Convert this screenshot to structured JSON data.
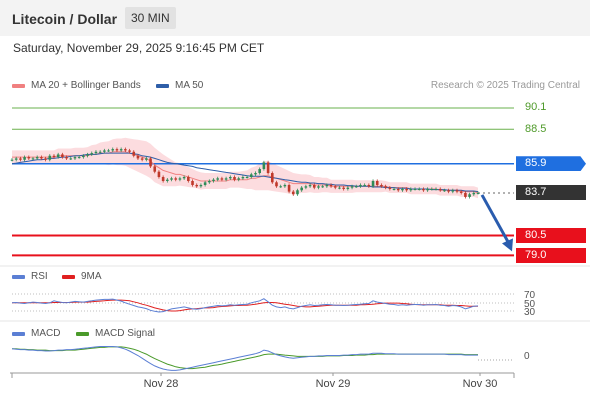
{
  "header": {
    "title": "Litecoin / Dollar",
    "timeframe": "30 MIN"
  },
  "datetime": "Saturday, November 29, 2025 9:16:45 PM CET",
  "legend": {
    "main": [
      {
        "label": "MA 20 + Bollinger Bands",
        "color": "#f08080"
      },
      {
        "label": "MA 50",
        "color": "#2e5ea8"
      }
    ],
    "rsi": [
      {
        "label": "RSI",
        "color": "#5b7fd4"
      },
      {
        "label": "9MA",
        "color": "#e02020"
      }
    ],
    "macd": [
      {
        "label": "MACD",
        "color": "#5b7fd4"
      },
      {
        "label": "MACD Signal",
        "color": "#4a9a2a"
      }
    ]
  },
  "copyright": "Research © 2025 Trading Central",
  "chart_data": {
    "type": "candlestick",
    "y_range": [
      78.5,
      91.0
    ],
    "levels": [
      {
        "label": "90.1",
        "value": 90.1,
        "style": "resistance-line",
        "color": "#6ab04c"
      },
      {
        "label": "88.5",
        "value": 88.5,
        "style": "resistance-line",
        "color": "#6ab04c"
      },
      {
        "label": "85.9",
        "value": 85.9,
        "style": "pivot",
        "color": "#1f6fe0"
      },
      {
        "label": "83.7",
        "value": 83.7,
        "style": "last-price",
        "color": "#333333"
      },
      {
        "label": "80.5",
        "value": 80.5,
        "style": "support",
        "color": "#e8101c"
      },
      {
        "label": "79.0",
        "value": 79.0,
        "style": "support",
        "color": "#e8101c"
      }
    ],
    "x_ticks": [
      "Nov 28",
      "Nov 29",
      "Nov 30"
    ],
    "close": [
      86.2,
      86.3,
      86.2,
      86.4,
      86.3,
      86.3,
      86.4,
      86.3,
      86.2,
      86.5,
      86.4,
      86.6,
      86.4,
      86.3,
      86.3,
      86.4,
      86.4,
      86.5,
      86.6,
      86.7,
      86.8,
      86.8,
      86.9,
      86.9,
      87.0,
      86.9,
      87.0,
      86.9,
      86.8,
      86.5,
      86.3,
      86.2,
      86.3,
      85.7,
      85.3,
      84.9,
      84.6,
      84.7,
      84.8,
      84.7,
      84.8,
      84.9,
      84.6,
      84.3,
      84.2,
      84.3,
      84.5,
      84.6,
      84.7,
      84.8,
      84.7,
      84.8,
      84.9,
      84.7,
      84.8,
      84.9,
      84.9,
      85.1,
      85.2,
      85.5,
      86.0,
      85.2,
      84.5,
      84.2,
      84.2,
      84.3,
      83.8,
      83.6,
      83.9,
      84.1,
      84.2,
      84.3,
      84.1,
      84.2,
      84.2,
      84.3,
      84.2,
      84.1,
      84.1,
      84.0,
      84.1,
      84.2,
      84.2,
      84.3,
      84.3,
      84.2,
      84.6,
      84.3,
      84.2,
      84.1,
      84.0,
      84.0,
      83.9,
      84.0,
      83.9,
      84.0,
      84.0,
      84.0,
      83.9,
      84.0,
      84.0,
      84.0,
      83.9,
      83.9,
      83.8,
      83.9,
      83.8,
      83.7,
      83.4,
      83.6,
      83.7,
      83.7
    ],
    "ma20": [
      86.4,
      86.4,
      86.4,
      86.4,
      86.4,
      86.4,
      86.4,
      86.4,
      86.4,
      86.4,
      86.4,
      86.5,
      86.5,
      86.5,
      86.5,
      86.5,
      86.5,
      86.5,
      86.5,
      86.6,
      86.6,
      86.7,
      86.7,
      86.7,
      86.8,
      86.8,
      86.8,
      86.8,
      86.7,
      86.6,
      86.5,
      86.4,
      86.3,
      86.1,
      85.8,
      85.6,
      85.4,
      85.3,
      85.2,
      85.1,
      85.1,
      85.0,
      84.9,
      84.8,
      84.7,
      84.6,
      84.6,
      84.6,
      84.6,
      84.6,
      84.6,
      84.6,
      84.7,
      84.7,
      84.7,
      84.7,
      84.7,
      84.8,
      84.8,
      84.9,
      85.0,
      85.0,
      84.9,
      84.8,
      84.7,
      84.6,
      84.5,
      84.4,
      84.4,
      84.4,
      84.4,
      84.4,
      84.3,
      84.3,
      84.3,
      84.3,
      84.2,
      84.2,
      84.2,
      84.2,
      84.2,
      84.2,
      84.2,
      84.2,
      84.2,
      84.2,
      84.2,
      84.2,
      84.2,
      84.2,
      84.1,
      84.1,
      84.1,
      84.1,
      84.1,
      84.0,
      84.0,
      84.0,
      84.0,
      84.0,
      84.0,
      84.0,
      83.9,
      83.9,
      83.9,
      83.9,
      83.9,
      83.8,
      83.8,
      83.8,
      83.8,
      83.7
    ],
    "ma50": [
      85.9,
      85.95,
      86.0,
      86.05,
      86.1,
      86.15,
      86.2,
      86.2,
      86.25,
      86.3,
      86.3,
      86.35,
      86.4,
      86.4,
      86.45,
      86.5,
      86.5,
      86.55,
      86.6,
      86.6,
      86.6,
      86.65,
      86.7,
      86.7,
      86.7,
      86.7,
      86.7,
      86.7,
      86.7,
      86.65,
      86.6,
      86.5,
      86.45,
      86.4,
      86.3,
      86.2,
      86.1,
      86.0,
      85.95,
      85.9,
      85.85,
      85.8,
      85.75,
      85.7,
      85.6,
      85.55,
      85.5,
      85.45,
      85.4,
      85.35,
      85.3,
      85.25,
      85.2,
      85.15,
      85.1,
      85.05,
      85.0,
      84.95,
      84.95,
      84.95,
      84.95,
      84.9,
      84.85,
      84.8,
      84.75,
      84.7,
      84.65,
      84.6,
      84.55,
      84.5,
      84.5,
      84.45,
      84.45,
      84.4,
      84.4,
      84.35,
      84.35,
      84.3,
      84.3,
      84.3,
      84.25,
      84.25,
      84.2,
      84.2,
      84.2,
      84.2,
      84.15,
      84.15,
      84.15,
      84.1,
      84.1,
      84.1,
      84.05,
      84.05,
      84.05,
      84.0,
      84.0,
      84.0,
      84.0,
      84.0,
      83.95,
      83.95,
      83.95,
      83.95,
      83.9,
      83.9,
      83.9,
      83.9,
      83.85,
      83.85,
      83.85,
      83.8
    ],
    "bb_width": [
      0.5,
      0.5,
      0.5,
      0.5,
      0.5,
      0.5,
      0.5,
      0.5,
      0.5,
      0.5,
      0.5,
      0.55,
      0.55,
      0.55,
      0.55,
      0.6,
      0.6,
      0.6,
      0.65,
      0.7,
      0.75,
      0.8,
      0.85,
      0.9,
      0.95,
      1.0,
      1.0,
      1.05,
      1.1,
      1.15,
      1.2,
      1.25,
      1.3,
      1.3,
      1.3,
      1.25,
      1.2,
      1.1,
      1.0,
      0.9,
      0.85,
      0.8,
      0.75,
      0.7,
      0.65,
      0.65,
      0.6,
      0.6,
      0.6,
      0.6,
      0.6,
      0.6,
      0.6,
      0.6,
      0.6,
      0.65,
      0.7,
      0.8,
      0.9,
      1.0,
      1.1,
      1.1,
      1.05,
      1.0,
      0.95,
      0.9,
      0.85,
      0.8,
      0.75,
      0.7,
      0.7,
      0.65,
      0.6,
      0.6,
      0.55,
      0.55,
      0.5,
      0.5,
      0.5,
      0.5,
      0.5,
      0.5,
      0.45,
      0.45,
      0.45,
      0.45,
      0.45,
      0.45,
      0.45,
      0.4,
      0.4,
      0.4,
      0.4,
      0.4,
      0.4,
      0.4,
      0.4,
      0.4,
      0.4,
      0.4,
      0.4,
      0.4,
      0.4,
      0.4,
      0.4,
      0.4,
      0.4,
      0.4,
      0.4,
      0.4,
      0.4,
      0.4
    ],
    "rsi": {
      "y_range": [
        20,
        80
      ],
      "levels": [
        {
          "label": "70",
          "value": 70
        },
        {
          "label": "50",
          "value": 50
        },
        {
          "label": "30",
          "value": 30
        }
      ],
      "rsi": [
        52,
        53,
        51,
        50,
        52,
        54,
        53,
        51,
        50,
        52,
        58,
        55,
        53,
        52,
        54,
        56,
        55,
        54,
        56,
        58,
        60,
        61,
        62,
        62,
        63,
        60,
        57,
        52,
        48,
        44,
        40,
        38,
        35,
        30,
        27,
        25,
        26,
        30,
        34,
        36,
        38,
        40,
        37,
        34,
        33,
        35,
        38,
        40,
        42,
        44,
        43,
        44,
        46,
        45,
        46,
        47,
        48,
        52,
        55,
        58,
        64,
        55,
        45,
        40,
        38,
        40,
        36,
        34,
        38,
        42,
        44,
        46,
        44,
        45,
        46,
        47,
        46,
        45,
        45,
        44,
        45,
        46,
        47,
        48,
        49,
        50,
        58,
        54,
        52,
        50,
        48,
        47,
        45,
        46,
        45,
        46,
        47,
        47,
        45,
        46,
        46,
        47,
        45,
        44,
        42,
        44,
        43,
        40,
        34,
        38,
        42,
        43
      ],
      "ma9": [
        52,
        52,
        52,
        52,
        52,
        52,
        52,
        52,
        52,
        52,
        53,
        53,
        53,
        53,
        53,
        54,
        54,
        54,
        54,
        55,
        56,
        57,
        58,
        59,
        60,
        60,
        60,
        59,
        58,
        55,
        52,
        48,
        45,
        41,
        37,
        34,
        31,
        29,
        28,
        28,
        29,
        31,
        33,
        34,
        35,
        36,
        37,
        37,
        38,
        40,
        41,
        42,
        43,
        44,
        44,
        45,
        45,
        46,
        48,
        50,
        52,
        53,
        53,
        52,
        50,
        48,
        46,
        44,
        42,
        41,
        40,
        40,
        41,
        42,
        43,
        44,
        45,
        45,
        45,
        45,
        45,
        45,
        45,
        46,
        46,
        47,
        48,
        49,
        50,
        51,
        51,
        51,
        51,
        50,
        49,
        48,
        47,
        46,
        46,
        46,
        46,
        46,
        46,
        45,
        45,
        45,
        44,
        44,
        43,
        42,
        42,
        42
      ]
    },
    "macd": {
      "y_range": [
        -0.55,
        0.15
      ],
      "zero_label": "0",
      "macd": [
        0.05,
        0.04,
        0.03,
        0.03,
        0.02,
        0.02,
        0.01,
        0.01,
        0.0,
        0.0,
        0.01,
        0.02,
        0.02,
        0.03,
        0.03,
        0.04,
        0.05,
        0.06,
        0.07,
        0.08,
        0.09,
        0.1,
        0.1,
        0.1,
        0.1,
        0.09,
        0.07,
        0.04,
        0.0,
        -0.05,
        -0.1,
        -0.16,
        -0.22,
        -0.28,
        -0.33,
        -0.37,
        -0.4,
        -0.42,
        -0.43,
        -0.43,
        -0.42,
        -0.4,
        -0.38,
        -0.36,
        -0.34,
        -0.32,
        -0.3,
        -0.28,
        -0.26,
        -0.24,
        -0.22,
        -0.2,
        -0.18,
        -0.16,
        -0.14,
        -0.12,
        -0.1,
        -0.08,
        -0.06,
        -0.03,
        0.02,
        0.0,
        -0.04,
        -0.08,
        -0.11,
        -0.13,
        -0.15,
        -0.16,
        -0.15,
        -0.14,
        -0.13,
        -0.12,
        -0.12,
        -0.11,
        -0.11,
        -0.1,
        -0.1,
        -0.1,
        -0.1,
        -0.09,
        -0.09,
        -0.08,
        -0.08,
        -0.07,
        -0.07,
        -0.07,
        -0.05,
        -0.05,
        -0.05,
        -0.06,
        -0.06,
        -0.06,
        -0.07,
        -0.07,
        -0.07,
        -0.07,
        -0.07,
        -0.07,
        -0.07,
        -0.07,
        -0.07,
        -0.07,
        -0.07,
        -0.07,
        -0.08,
        -0.08,
        -0.08,
        -0.08,
        -0.09,
        -0.09,
        -0.09,
        -0.09
      ],
      "signal": [
        0.05,
        0.05,
        0.04,
        0.04,
        0.03,
        0.03,
        0.02,
        0.02,
        0.02,
        0.01,
        0.01,
        0.01,
        0.01,
        0.02,
        0.02,
        0.02,
        0.03,
        0.04,
        0.05,
        0.06,
        0.07,
        0.08,
        0.08,
        0.09,
        0.09,
        0.09,
        0.09,
        0.08,
        0.06,
        0.04,
        0.01,
        -0.03,
        -0.07,
        -0.12,
        -0.17,
        -0.21,
        -0.25,
        -0.29,
        -0.32,
        -0.35,
        -0.37,
        -0.38,
        -0.39,
        -0.39,
        -0.38,
        -0.37,
        -0.36,
        -0.34,
        -0.32,
        -0.31,
        -0.29,
        -0.27,
        -0.25,
        -0.23,
        -0.21,
        -0.19,
        -0.17,
        -0.15,
        -0.13,
        -0.11,
        -0.08,
        -0.07,
        -0.07,
        -0.07,
        -0.08,
        -0.09,
        -0.1,
        -0.11,
        -0.12,
        -0.12,
        -0.12,
        -0.12,
        -0.12,
        -0.12,
        -0.12,
        -0.11,
        -0.11,
        -0.11,
        -0.11,
        -0.1,
        -0.1,
        -0.1,
        -0.09,
        -0.09,
        -0.09,
        -0.08,
        -0.08,
        -0.07,
        -0.07,
        -0.07,
        -0.07,
        -0.07,
        -0.07,
        -0.07,
        -0.07,
        -0.07,
        -0.07,
        -0.07,
        -0.07,
        -0.07,
        -0.07,
        -0.07,
        -0.07,
        -0.07,
        -0.07,
        -0.07,
        -0.07,
        -0.07,
        -0.08,
        -0.08,
        -0.08,
        -0.08
      ]
    }
  }
}
